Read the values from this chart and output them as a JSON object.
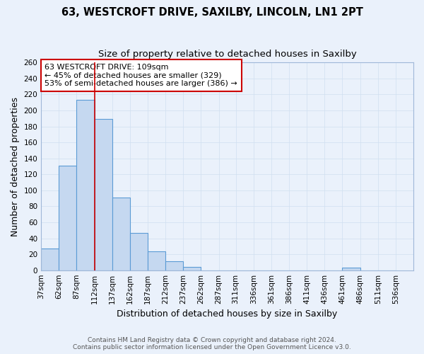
{
  "title": "63, WESTCROFT DRIVE, SAXILBY, LINCOLN, LN1 2PT",
  "subtitle": "Size of property relative to detached houses in Saxilby",
  "xlabel": "Distribution of detached houses by size in Saxilby",
  "ylabel": "Number of detached properties",
  "bar_left_edges": [
    37,
    62,
    87,
    112,
    137,
    162,
    187,
    212,
    237,
    262,
    287,
    311,
    336,
    361,
    386,
    411,
    436,
    461,
    486,
    511
  ],
  "bar_widths": [
    25,
    25,
    25,
    25,
    25,
    25,
    25,
    25,
    25,
    25,
    24,
    25,
    25,
    25,
    25,
    25,
    25,
    25,
    25,
    25
  ],
  "bar_heights": [
    27,
    131,
    213,
    189,
    91,
    47,
    24,
    11,
    4,
    0,
    0,
    0,
    0,
    0,
    0,
    0,
    0,
    3,
    0,
    0
  ],
  "bar_color": "#c5d8f0",
  "bar_edge_color": "#5b9bd5",
  "x_tick_labels": [
    "37sqm",
    "62sqm",
    "87sqm",
    "112sqm",
    "137sqm",
    "162sqm",
    "187sqm",
    "212sqm",
    "237sqm",
    "262sqm",
    "287sqm",
    "311sqm",
    "336sqm",
    "361sqm",
    "386sqm",
    "411sqm",
    "436sqm",
    "461sqm",
    "486sqm",
    "511sqm",
    "536sqm"
  ],
  "x_tick_positions": [
    37,
    62,
    87,
    112,
    137,
    162,
    187,
    212,
    237,
    262,
    287,
    311,
    336,
    361,
    386,
    411,
    436,
    461,
    486,
    511,
    536
  ],
  "ylim": [
    0,
    260
  ],
  "xlim": [
    37,
    561
  ],
  "y_ticks": [
    0,
    20,
    40,
    60,
    80,
    100,
    120,
    140,
    160,
    180,
    200,
    220,
    240,
    260
  ],
  "property_line_x": 112,
  "annotation_line1": "63 WESTCROFT DRIVE: 109sqm",
  "annotation_line2": "← 45% of detached houses are smaller (329)",
  "annotation_line3": "53% of semi-detached houses are larger (386) →",
  "footer_line1": "Contains HM Land Registry data © Crown copyright and database right 2024.",
  "footer_line2": "Contains public sector information licensed under the Open Government Licence v3.0.",
  "bg_color": "#eaf1fb",
  "grid_color": "#d0dff0",
  "title_fontsize": 10.5,
  "subtitle_fontsize": 9.5,
  "axis_label_fontsize": 9,
  "tick_fontsize": 7.5,
  "annotation_fontsize": 8,
  "footer_fontsize": 6.5
}
